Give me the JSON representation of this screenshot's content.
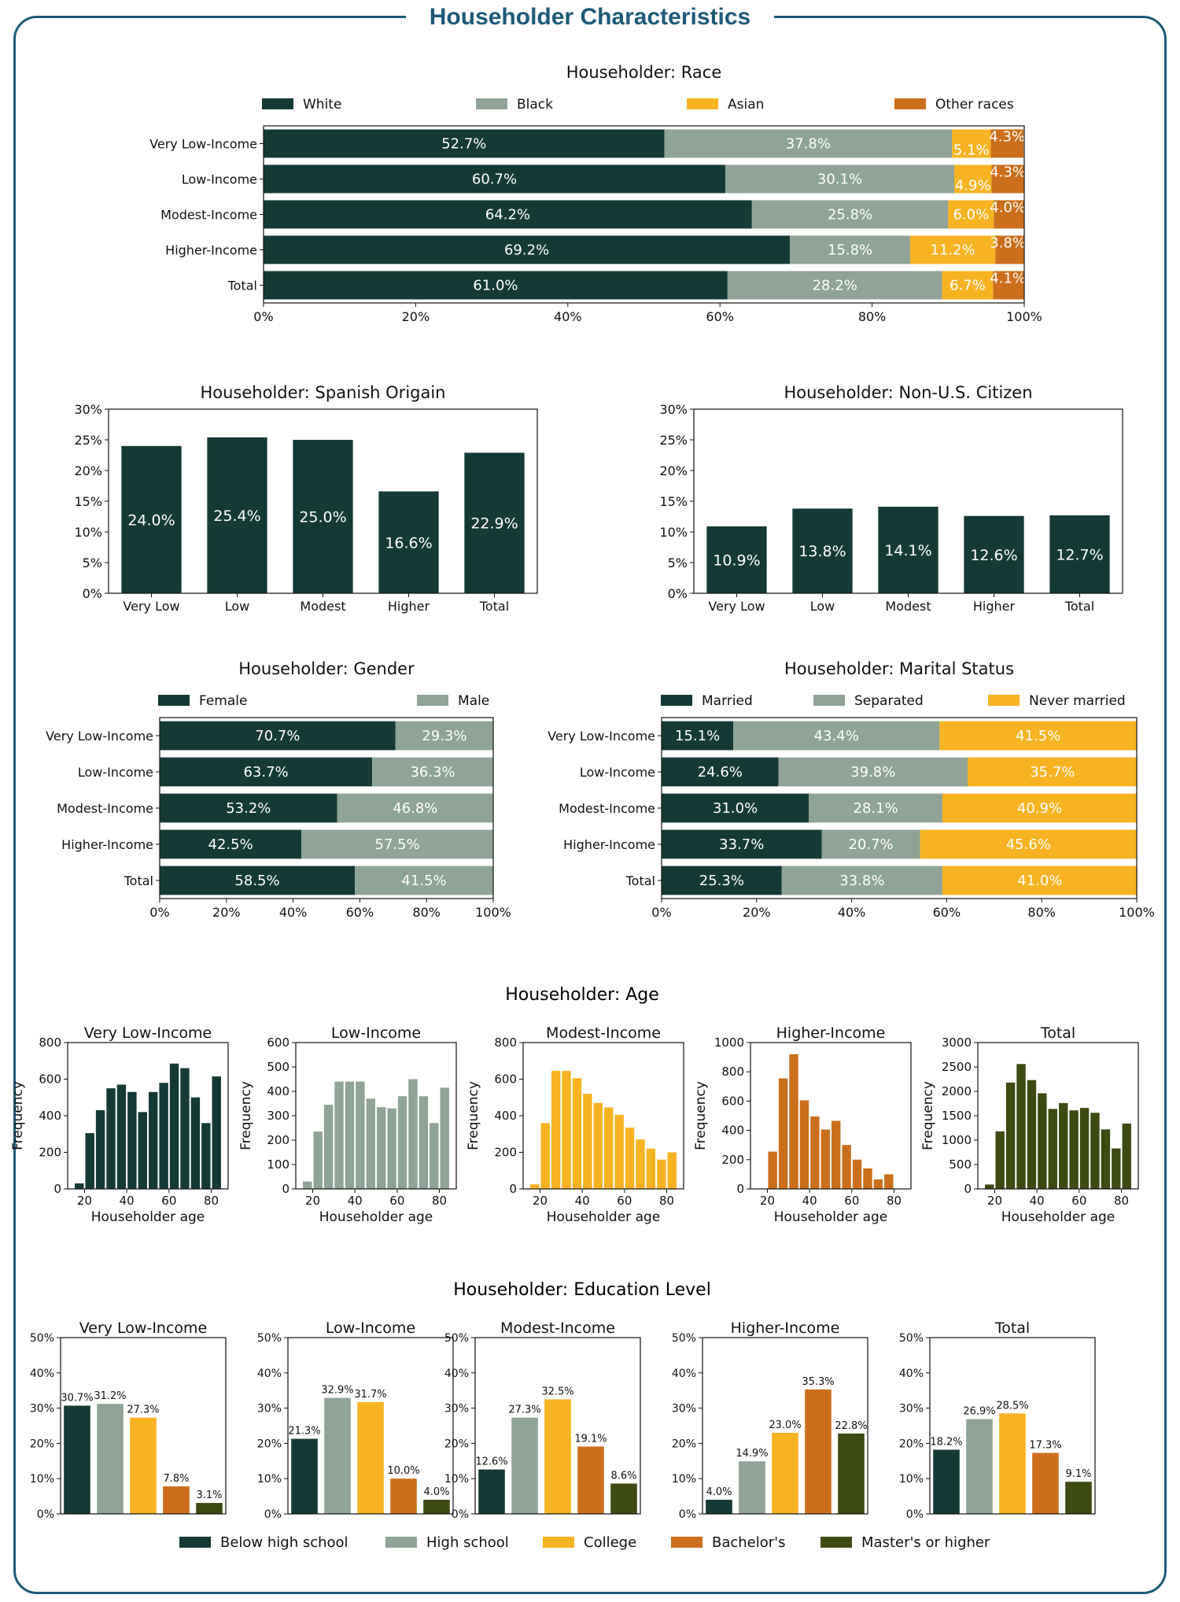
{
  "page": {
    "title": "Householder Characteristics",
    "age_section_title": "Householder: Age",
    "edu_section_title": "Householder: Education Level"
  },
  "colors": {
    "frame": "#1d5a78",
    "dark_green": "#153a35",
    "gray_green": "#8fa396",
    "gold": "#f7b322",
    "orange": "#cc6f1c",
    "olive": "#3d4a12"
  },
  "chart_data": [
    {
      "id": "race",
      "type": "bar",
      "orientation": "horizontal",
      "stacked": true,
      "title": "Householder: Race",
      "categories": [
        "Very Low-Income",
        "Low-Income",
        "Modest-Income",
        "Higher-Income",
        "Total"
      ],
      "series": [
        {
          "name": "White",
          "color": "#153a35",
          "values": [
            52.7,
            60.7,
            64.2,
            69.2,
            61.0
          ],
          "labels": [
            "52.7%",
            "60.7%",
            "64.2%",
            "69.2%",
            "61.0%"
          ]
        },
        {
          "name": "Black",
          "color": "#8fa396",
          "values": [
            37.8,
            30.1,
            25.8,
            15.8,
            28.2
          ],
          "labels": [
            "37.8%",
            "30.1%",
            "25.8%",
            "15.8%",
            "28.2%"
          ]
        },
        {
          "name": "Asian",
          "color": "#f7b322",
          "values": [
            5.1,
            4.9,
            6.0,
            11.2,
            6.7
          ],
          "labels": [
            "5.1%",
            "4.9%",
            "6.0%",
            "11.2%",
            "6.7%"
          ]
        },
        {
          "name": "Other races",
          "color": "#cc6f1c",
          "values": [
            4.3,
            4.3,
            4.0,
            3.8,
            4.1
          ],
          "labels": [
            "4.3%",
            "4.3%",
            "4.0%",
            "3.8%",
            "4.1%"
          ]
        }
      ],
      "xlim": [
        0,
        100
      ],
      "xticks": [
        "0%",
        "20%",
        "40%",
        "60%",
        "80%",
        "100%"
      ],
      "legend": "top"
    },
    {
      "id": "spanish",
      "type": "bar",
      "title": "Householder: Spanish Origain",
      "categories": [
        "Very Low",
        "Low",
        "Modest",
        "Higher",
        "Total"
      ],
      "values": [
        24.0,
        25.4,
        25.0,
        16.6,
        22.9
      ],
      "labels": [
        "24.0%",
        "25.4%",
        "25.0%",
        "16.6%",
        "22.9%"
      ],
      "ylim": [
        0,
        30
      ],
      "yticks": [
        "0%",
        "5%",
        "10%",
        "15%",
        "20%",
        "25%",
        "30%"
      ],
      "color": "#153a35"
    },
    {
      "id": "citizen",
      "type": "bar",
      "title": "Householder: Non-U.S. Citizen",
      "categories": [
        "Very Low",
        "Low",
        "Modest",
        "Higher",
        "Total"
      ],
      "values": [
        10.9,
        13.8,
        14.1,
        12.6,
        12.7
      ],
      "labels": [
        "10.9%",
        "13.8%",
        "14.1%",
        "12.6%",
        "12.7%"
      ],
      "ylim": [
        0,
        30
      ],
      "yticks": [
        "0%",
        "5%",
        "10%",
        "15%",
        "20%",
        "25%",
        "30%"
      ],
      "color": "#153a35"
    },
    {
      "id": "gender",
      "type": "bar",
      "orientation": "horizontal",
      "stacked": true,
      "title": "Householder: Gender",
      "categories": [
        "Very Low-Income",
        "Low-Income",
        "Modest-Income",
        "Higher-Income",
        "Total"
      ],
      "series": [
        {
          "name": "Female",
          "color": "#153a35",
          "values": [
            70.7,
            63.7,
            53.2,
            42.5,
            58.5
          ],
          "labels": [
            "70.7%",
            "63.7%",
            "53.2%",
            "42.5%",
            "58.5%"
          ]
        },
        {
          "name": "Male",
          "color": "#8fa396",
          "values": [
            29.3,
            36.3,
            46.8,
            57.5,
            41.5
          ],
          "labels": [
            "29.3%",
            "36.3%",
            "46.8%",
            "57.5%",
            "41.5%"
          ]
        }
      ],
      "xlim": [
        0,
        100
      ],
      "xticks": [
        "0%",
        "20%",
        "40%",
        "60%",
        "80%",
        "100%"
      ],
      "legend": "top"
    },
    {
      "id": "marital",
      "type": "bar",
      "orientation": "horizontal",
      "stacked": true,
      "title": "Householder: Marital Status",
      "categories": [
        "Very Low-Income",
        "Low-Income",
        "Modest-Income",
        "Higher-Income",
        "Total"
      ],
      "series": [
        {
          "name": "Married",
          "color": "#153a35",
          "values": [
            15.1,
            24.6,
            31.0,
            33.7,
            25.3
          ],
          "labels": [
            "15.1%",
            "24.6%",
            "31.0%",
            "33.7%",
            "25.3%"
          ]
        },
        {
          "name": "Separated",
          "color": "#8fa396",
          "values": [
            43.4,
            39.8,
            28.1,
            20.7,
            33.8
          ],
          "labels": [
            "43.4%",
            "39.8%",
            "28.1%",
            "20.7%",
            "33.8%"
          ]
        },
        {
          "name": "Never married",
          "color": "#f7b322",
          "values": [
            41.5,
            35.7,
            40.9,
            45.6,
            41.0
          ],
          "labels": [
            "41.5%",
            "35.7%",
            "40.9%",
            "45.6%",
            "41.0%"
          ]
        }
      ],
      "xlim": [
        0,
        100
      ],
      "xticks": [
        "0%",
        "20%",
        "40%",
        "60%",
        "80%",
        "100%"
      ],
      "legend": "top"
    },
    {
      "id": "age-vl",
      "type": "histogram",
      "title": "Very Low-Income",
      "xlabel": "Householder age",
      "ylabel": "Frequency",
      "bin_start": 15,
      "bin_width": 5,
      "xlim": [
        12,
        88
      ],
      "x_ticks": [
        20,
        40,
        60,
        80
      ],
      "values": [
        30,
        305,
        430,
        550,
        570,
        530,
        420,
        530,
        580,
        685,
        660,
        500,
        360,
        615
      ],
      "ylim": [
        0,
        800
      ],
      "y_ticks": [
        0,
        200,
        400,
        600,
        800
      ],
      "color": "#153a35"
    },
    {
      "id": "age-l",
      "type": "histogram",
      "title": "Low-Income",
      "xlabel": "Householder age",
      "ylabel": "Frequency",
      "bin_start": 15,
      "bin_width": 5,
      "xlim": [
        12,
        88
      ],
      "x_ticks": [
        20,
        40,
        60,
        80
      ],
      "values": [
        30,
        235,
        345,
        440,
        440,
        440,
        370,
        335,
        330,
        380,
        450,
        380,
        270,
        415
      ],
      "ylim": [
        0,
        600
      ],
      "y_ticks": [
        0,
        100,
        200,
        300,
        400,
        500,
        600
      ],
      "color": "#8fa396"
    },
    {
      "id": "age-m",
      "type": "histogram",
      "title": "Modest-Income",
      "xlabel": "Householder age",
      "ylabel": "Frequency",
      "bin_start": 15,
      "bin_width": 5,
      "xlim": [
        12,
        88
      ],
      "x_ticks": [
        20,
        40,
        60,
        80
      ],
      "values": [
        25,
        360,
        645,
        645,
        605,
        520,
        470,
        445,
        405,
        335,
        270,
        220,
        160,
        200
      ],
      "ylim": [
        0,
        800
      ],
      "y_ticks": [
        0,
        200,
        400,
        600,
        800
      ],
      "color": "#f7b322"
    },
    {
      "id": "age-h",
      "type": "histogram",
      "title": "Higher-Income",
      "xlabel": "Householder age",
      "ylabel": "Frequency",
      "bin_start": 20,
      "bin_width": 5,
      "xlim": [
        12,
        88
      ],
      "x_ticks": [
        20,
        40,
        60,
        80
      ],
      "values": [
        255,
        755,
        920,
        605,
        495,
        405,
        465,
        300,
        200,
        140,
        65,
        100
      ],
      "ylim": [
        0,
        1000
      ],
      "y_ticks": [
        0,
        200,
        400,
        600,
        800,
        1000
      ],
      "color": "#cc6f1c"
    },
    {
      "id": "age-t",
      "type": "histogram",
      "title": "Total",
      "xlabel": "Householder age",
      "ylabel": "Frequency",
      "bin_start": 15,
      "bin_width": 5,
      "xlim": [
        12,
        88
      ],
      "x_ticks": [
        20,
        40,
        60,
        80
      ],
      "values": [
        90,
        1180,
        2180,
        2560,
        2230,
        1960,
        1640,
        1760,
        1610,
        1660,
        1560,
        1220,
        830,
        1340
      ],
      "ylim": [
        0,
        3000
      ],
      "y_ticks": [
        0,
        500,
        1000,
        1500,
        2000,
        2500,
        3000
      ],
      "color": "#3d4a12"
    },
    {
      "id": "edu-vl",
      "type": "bar",
      "title": "Very Low-Income",
      "categories": [
        "Below high school",
        "High school",
        "College",
        "Bachelor's",
        "Master's or higher"
      ],
      "values": [
        30.7,
        31.2,
        27.3,
        7.8,
        3.1
      ],
      "labels": [
        "30.7%",
        "31.2%",
        "27.3%",
        "7.8%",
        "3.1%"
      ],
      "ylim": [
        0,
        50
      ],
      "yticks": [
        "0%",
        "10%",
        "20%",
        "30%",
        "40%",
        "50%"
      ]
    },
    {
      "id": "edu-l",
      "type": "bar",
      "title": "Low-Income",
      "categories": [
        "Below high school",
        "High school",
        "College",
        "Bachelor's",
        "Master's or higher"
      ],
      "values": [
        21.3,
        32.9,
        31.7,
        10.0,
        4.0
      ],
      "labels": [
        "21.3%",
        "32.9%",
        "31.7%",
        "10.0%",
        "4.0%"
      ],
      "ylim": [
        0,
        50
      ],
      "yticks": [
        "0%",
        "10%",
        "20%",
        "30%",
        "40%",
        "50%"
      ]
    },
    {
      "id": "edu-m",
      "type": "bar",
      "title": "Modest-Income",
      "categories": [
        "Below high school",
        "High school",
        "College",
        "Bachelor's",
        "Master's or higher"
      ],
      "values": [
        12.6,
        27.3,
        32.5,
        19.1,
        8.6
      ],
      "labels": [
        "12.6%",
        "27.3%",
        "32.5%",
        "19.1%",
        "8.6%"
      ],
      "ylim": [
        0,
        50
      ],
      "yticks": [
        "0%",
        "10%",
        "20%",
        "30%",
        "40%",
        "50%"
      ]
    },
    {
      "id": "edu-h",
      "type": "bar",
      "title": "Higher-Income",
      "categories": [
        "Below high school",
        "High school",
        "College",
        "Bachelor's",
        "Master's or higher"
      ],
      "values": [
        4.0,
        14.9,
        23.0,
        35.3,
        22.8
      ],
      "labels": [
        "4.0%",
        "14.9%",
        "23.0%",
        "35.3%",
        "22.8%"
      ],
      "ylim": [
        0,
        50
      ],
      "yticks": [
        "0%",
        "10%",
        "20%",
        "30%",
        "40%",
        "50%"
      ]
    },
    {
      "id": "edu-t",
      "type": "bar",
      "title": "Total",
      "categories": [
        "Below high school",
        "High school",
        "College",
        "Bachelor's",
        "Master's or higher"
      ],
      "values": [
        18.2,
        26.9,
        28.5,
        17.3,
        9.1
      ],
      "labels": [
        "18.2%",
        "26.9%",
        "28.5%",
        "17.3%",
        "9.1%"
      ],
      "ylim": [
        0,
        50
      ],
      "yticks": [
        "0%",
        "10%",
        "20%",
        "30%",
        "40%",
        "50%"
      ]
    }
  ],
  "edu_legend": {
    "items": [
      "Below high school",
      "High school",
      "College",
      "Bachelor's",
      "Master's or higher"
    ],
    "colors": [
      "#153a35",
      "#8fa396",
      "#f7b322",
      "#cc6f1c",
      "#3d4a12"
    ]
  }
}
